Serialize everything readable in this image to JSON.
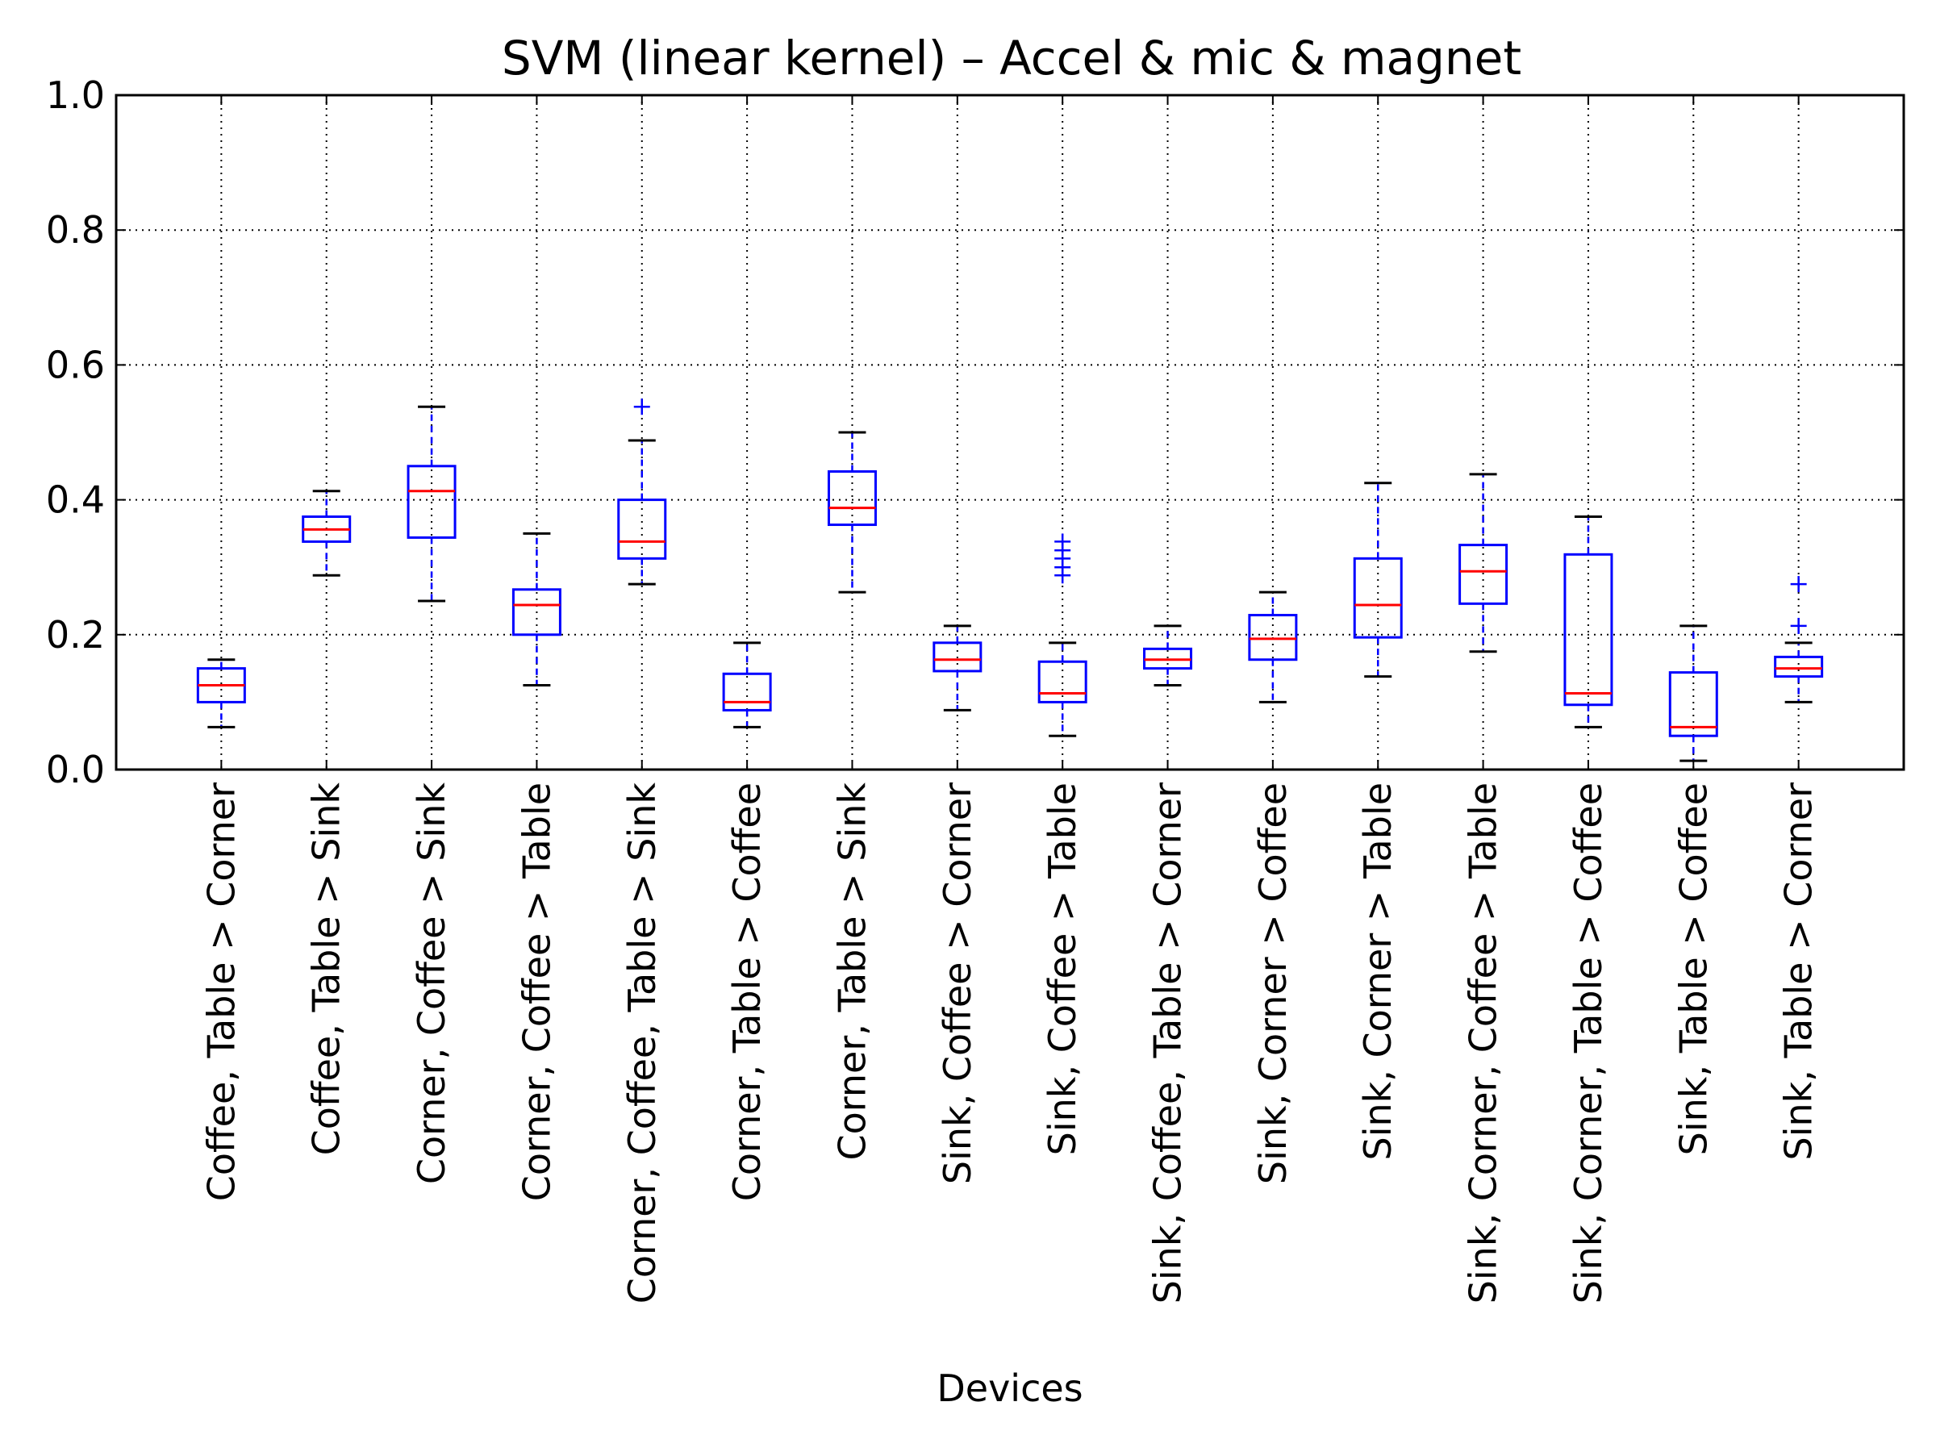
{
  "chart_data": {
    "type": "box",
    "title": "SVM (linear kernel) – Accel & mic & magnet",
    "xlabel": "Devices",
    "ylabel": "",
    "ylim": [
      0.0,
      1.0
    ],
    "yticks": [
      "0.0",
      "0.2",
      "0.4",
      "0.6",
      "0.8",
      "1.0"
    ],
    "grid": true,
    "colors": {
      "box": "#0000ff",
      "median": "#ff0000",
      "whisker_cap": "#000000",
      "flier": "#0000ff",
      "grid": "#000000"
    },
    "categories": [
      "Coffee, Table > Corner",
      "Coffee, Table > Sink",
      "Corner, Coffee > Sink",
      "Corner, Coffee > Table",
      "Corner, Coffee, Table > Sink",
      "Corner, Table > Coffee",
      "Corner, Table > Sink",
      "Sink, Coffee > Corner",
      "Sink, Coffee > Table",
      "Sink, Coffee, Table > Corner",
      "Sink, Corner > Coffee",
      "Sink, Corner > Table",
      "Sink, Corner, Coffee > Table",
      "Sink, Corner, Table > Coffee",
      "Sink, Table > Coffee",
      "Sink, Table > Corner"
    ],
    "boxes": [
      {
        "whislo": 0.063,
        "q1": 0.1,
        "med": 0.125,
        "q3": 0.15,
        "whishi": 0.163,
        "fliers": []
      },
      {
        "whislo": 0.288,
        "q1": 0.338,
        "med": 0.356,
        "q3": 0.375,
        "whishi": 0.413,
        "fliers": []
      },
      {
        "whislo": 0.25,
        "q1": 0.344,
        "med": 0.413,
        "q3": 0.45,
        "whishi": 0.538,
        "fliers": []
      },
      {
        "whislo": 0.125,
        "q1": 0.2,
        "med": 0.244,
        "q3": 0.267,
        "whishi": 0.35,
        "fliers": []
      },
      {
        "whislo": 0.275,
        "q1": 0.313,
        "med": 0.338,
        "q3": 0.4,
        "whishi": 0.488,
        "fliers": [
          0.538
        ]
      },
      {
        "whislo": 0.063,
        "q1": 0.088,
        "med": 0.1,
        "q3": 0.142,
        "whishi": 0.188,
        "fliers": []
      },
      {
        "whislo": 0.263,
        "q1": 0.363,
        "med": 0.388,
        "q3": 0.442,
        "whishi": 0.5,
        "fliers": []
      },
      {
        "whislo": 0.088,
        "q1": 0.146,
        "med": 0.163,
        "q3": 0.188,
        "whishi": 0.213,
        "fliers": []
      },
      {
        "whislo": 0.05,
        "q1": 0.1,
        "med": 0.113,
        "q3": 0.16,
        "whishi": 0.188,
        "fliers": [
          0.288,
          0.3,
          0.313,
          0.325,
          0.338
        ]
      },
      {
        "whislo": 0.125,
        "q1": 0.15,
        "med": 0.163,
        "q3": 0.179,
        "whishi": 0.213,
        "fliers": []
      },
      {
        "whislo": 0.1,
        "q1": 0.163,
        "med": 0.194,
        "q3": 0.229,
        "whishi": 0.263,
        "fliers": []
      },
      {
        "whislo": 0.138,
        "q1": 0.196,
        "med": 0.244,
        "q3": 0.313,
        "whishi": 0.425,
        "fliers": []
      },
      {
        "whislo": 0.175,
        "q1": 0.246,
        "med": 0.294,
        "q3": 0.333,
        "whishi": 0.438,
        "fliers": []
      },
      {
        "whislo": 0.063,
        "q1": 0.096,
        "med": 0.113,
        "q3": 0.319,
        "whishi": 0.375,
        "fliers": []
      },
      {
        "whislo": 0.013,
        "q1": 0.05,
        "med": 0.063,
        "q3": 0.144,
        "whishi": 0.213,
        "fliers": []
      },
      {
        "whislo": 0.1,
        "q1": 0.138,
        "med": 0.15,
        "q3": 0.167,
        "whishi": 0.188,
        "fliers": [
          0.213,
          0.275
        ]
      }
    ]
  }
}
